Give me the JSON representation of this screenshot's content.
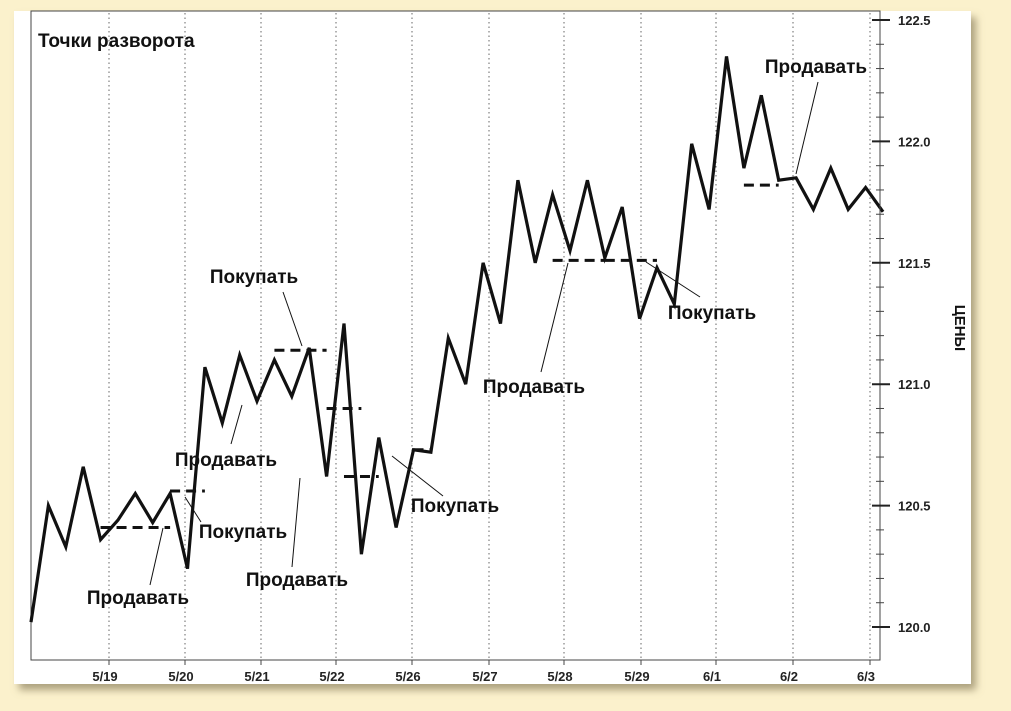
{
  "chart_data": {
    "type": "line",
    "title": "Точки разворота",
    "xlabel": "",
    "ylabel": "ЦЕНЫ",
    "ylim": [
      119.9,
      122.55
    ],
    "yticks": [
      "122.5",
      "122.0",
      "121.5",
      "121.0",
      "120.5",
      "120.0"
    ],
    "date_labels": [
      "5/19",
      "5/20",
      "5/21",
      "5/22",
      "5/26",
      "5/27",
      "5/28",
      "5/29",
      "6/1",
      "6/2",
      "6/3"
    ],
    "grid": "vertical dotted at date boundaries",
    "series": [
      {
        "values": [
          120.02,
          120.5,
          120.33,
          120.66,
          120.36,
          120.44,
          120.55,
          120.43,
          120.55,
          120.24,
          121.07,
          120.84,
          121.12,
          120.93,
          121.1,
          120.95,
          121.15,
          120.62,
          121.25,
          120.3,
          120.78,
          120.41,
          120.73,
          120.72,
          121.19,
          121.0,
          121.5,
          121.25,
          121.84,
          121.5,
          121.78,
          121.55,
          121.84,
          121.52,
          121.73,
          121.27,
          121.48,
          121.33,
          121.99,
          121.72,
          122.35,
          121.89,
          122.19,
          121.84,
          121.85,
          121.72,
          121.89,
          121.72,
          121.81,
          121.71
        ]
      }
    ],
    "levels": [
      {
        "from_index": 4,
        "to_index": 8,
        "value": 120.41
      },
      {
        "from_index": 8,
        "to_index": 10,
        "value": 120.56
      },
      {
        "from_index": 14,
        "to_index": 17,
        "value": 121.14
      },
      {
        "from_index": 17,
        "to_index": 19,
        "value": 120.9
      },
      {
        "from_index": 18,
        "to_index": 20,
        "value": 120.62
      },
      {
        "from_index": 22,
        "to_index": 23,
        "value": 120.73
      },
      {
        "from_index": 30,
        "to_index": 33,
        "value": 121.51
      },
      {
        "from_index": 33,
        "to_index": 36,
        "value": 121.51
      },
      {
        "from_index": 41,
        "to_index": 43,
        "value": 121.82
      }
    ],
    "annotations": [
      {
        "text": "Продавать",
        "index": 6
      },
      {
        "text": "Покупать",
        "index": 9
      },
      {
        "text": "Продавать",
        "index": 15
      },
      {
        "text": "Покупать",
        "index": 19
      },
      {
        "text": "Продавать",
        "index": 19
      },
      {
        "text": "Покупать",
        "index": 24
      },
      {
        "text": "Продавать",
        "index": 31
      },
      {
        "text": "Покупать",
        "index": 36
      },
      {
        "text": "Продавать",
        "index": 44
      }
    ]
  }
}
